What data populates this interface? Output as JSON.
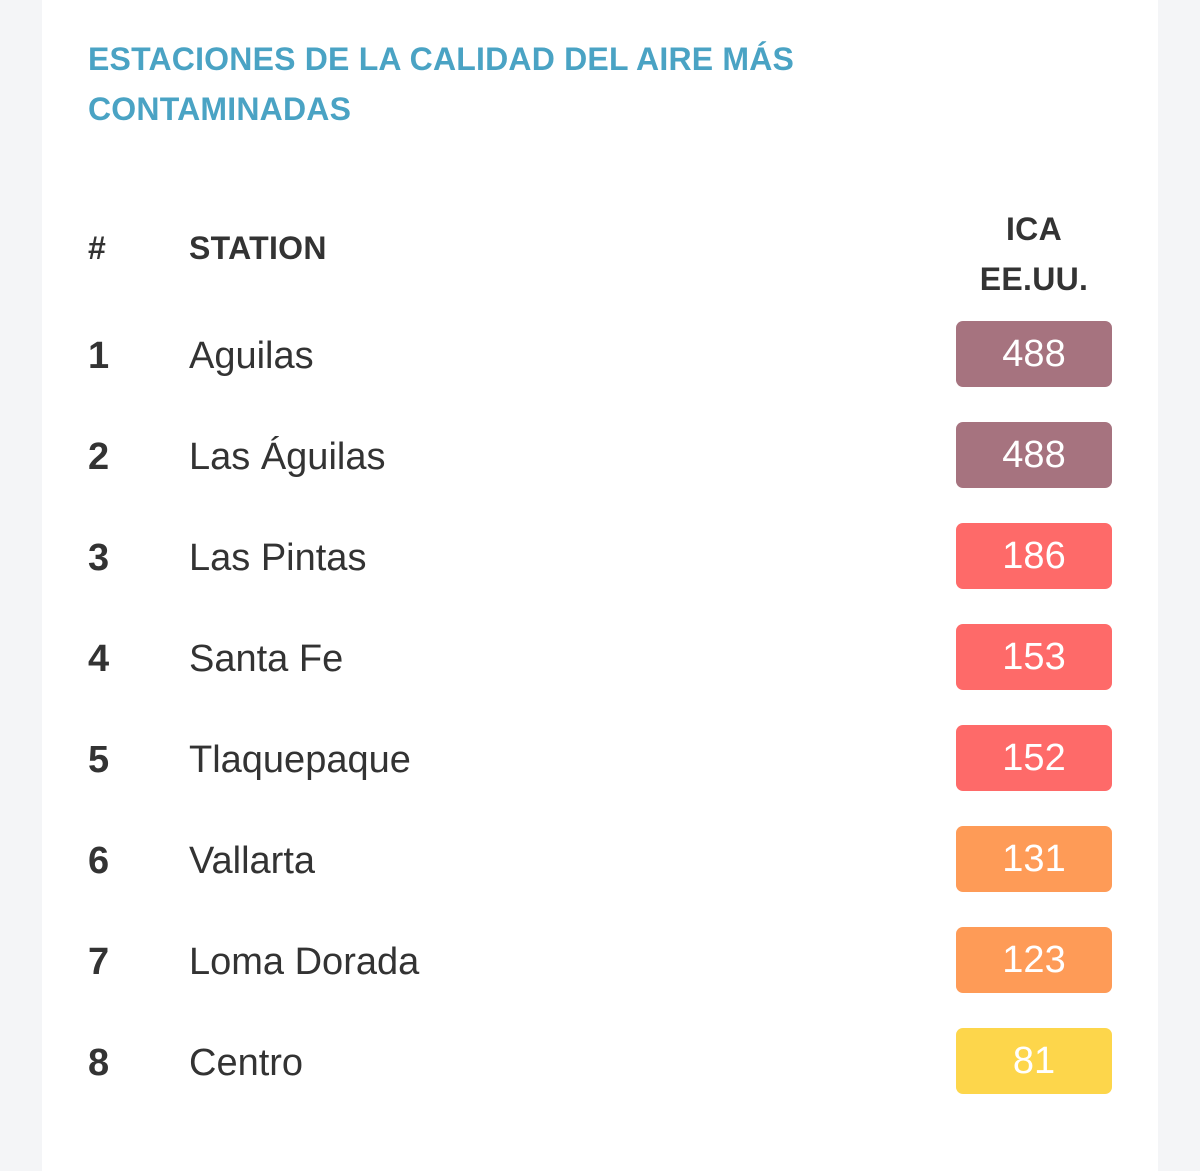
{
  "title": "ESTACIONES DE LA CALIDAD DEL AIRE MÁS CONTAMINADAS",
  "table": {
    "headers": {
      "rank": "#",
      "station": "STATION",
      "aqi_line1": "ICA",
      "aqi_line2": "EE.UU."
    },
    "rows": [
      {
        "rank": "1",
        "station": "Aguilas",
        "aqi": "488",
        "color": "#a6737f"
      },
      {
        "rank": "2",
        "station": "Las Águilas",
        "aqi": "488",
        "color": "#a6737f"
      },
      {
        "rank": "3",
        "station": "Las Pintas",
        "aqi": "186",
        "color": "#fe6a69"
      },
      {
        "rank": "4",
        "station": "Santa Fe",
        "aqi": "153",
        "color": "#fe6a69"
      },
      {
        "rank": "5",
        "station": "Tlaquepaque",
        "aqi": "152",
        "color": "#fe6a69"
      },
      {
        "rank": "6",
        "station": "Vallarta",
        "aqi": "131",
        "color": "#fe9b57"
      },
      {
        "rank": "7",
        "station": "Loma Dorada",
        "aqi": "123",
        "color": "#fe9b57"
      },
      {
        "rank": "8",
        "station": "Centro",
        "aqi": "81",
        "color": "#fdd64b"
      }
    ]
  }
}
